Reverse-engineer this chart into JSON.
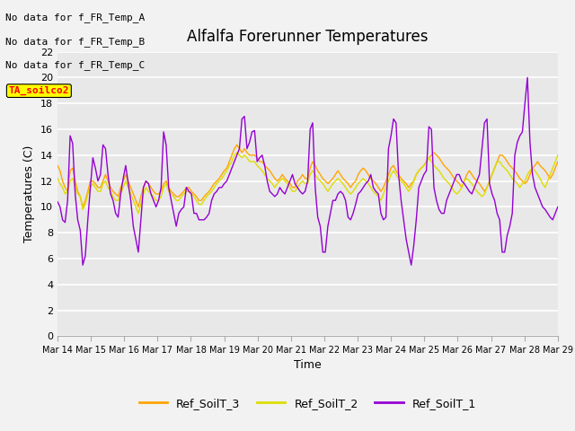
{
  "title": "Alfalfa Forerunner Temperatures",
  "xlabel": "Time",
  "ylabel": "Temperatures (C)",
  "ylim": [
    0,
    22
  ],
  "bg_color": "#e8e8e8",
  "fig_color": "#f2f2f2",
  "annotations": [
    "No data for f_FR_Temp_A",
    "No data for f_FR_Temp_B",
    "No data for f_FR_Temp_C"
  ],
  "box_label": "TA_soilco2",
  "line_colors": {
    "Ref_SoilT_3": "#FFA500",
    "Ref_SoilT_2": "#DDDD00",
    "Ref_SoilT_1": "#9400D3"
  },
  "xtick_labels": [
    "Mar 14",
    "Mar 15",
    "Mar 16",
    "Mar 17",
    "Mar 18",
    "Mar 19",
    "Mar 20",
    "Mar 21",
    "Mar 22",
    "Mar 23",
    "Mar 24",
    "Mar 25",
    "Mar 26",
    "Mar 27",
    "Mar 28",
    "Mar 29"
  ],
  "ytick_values": [
    0,
    2,
    4,
    6,
    8,
    10,
    12,
    14,
    16,
    18,
    20,
    22
  ],
  "ref_soilt_1": [
    10.4,
    10.0,
    9.0,
    8.8,
    10.5,
    15.5,
    14.9,
    11.0,
    9.0,
    8.2,
    5.5,
    6.2,
    9.0,
    11.5,
    13.8,
    13.0,
    12.0,
    12.5,
    14.8,
    14.5,
    12.5,
    11.0,
    10.5,
    9.5,
    9.2,
    11.0,
    12.2,
    13.2,
    11.8,
    10.5,
    8.5,
    7.5,
    6.5,
    9.0,
    11.5,
    12.0,
    11.8,
    11.0,
    10.5,
    10.0,
    10.5,
    11.5,
    15.8,
    14.8,
    11.5,
    10.5,
    9.5,
    8.5,
    9.5,
    9.8,
    10.0,
    11.5,
    11.2,
    11.0,
    9.5,
    9.5,
    9.0,
    9.0,
    9.0,
    9.2,
    9.5,
    10.5,
    11.0,
    11.2,
    11.5,
    11.5,
    11.8,
    12.0,
    12.5,
    13.0,
    13.5,
    14.0,
    14.5,
    16.8,
    17.0,
    14.5,
    15.0,
    15.8,
    15.9,
    13.5,
    13.8,
    14.0,
    13.2,
    12.0,
    11.2,
    11.0,
    10.8,
    11.0,
    11.5,
    11.2,
    11.0,
    11.5,
    12.0,
    12.5,
    11.8,
    11.5,
    11.2,
    11.0,
    11.2,
    12.0,
    16.0,
    16.5,
    11.5,
    9.2,
    8.5,
    6.5,
    6.5,
    8.5,
    9.5,
    10.5,
    10.5,
    11.0,
    11.2,
    11.0,
    10.5,
    9.2,
    9.0,
    9.5,
    10.2,
    11.0,
    11.2,
    11.5,
    11.8,
    12.0,
    12.5,
    11.5,
    11.2,
    11.0,
    9.5,
    9.0,
    9.2,
    14.5,
    15.5,
    16.8,
    16.5,
    12.5,
    10.5,
    9.0,
    7.5,
    6.5,
    5.5,
    7.0,
    9.0,
    11.5,
    12.0,
    12.5,
    12.8,
    16.2,
    16.0,
    11.5,
    10.5,
    9.8,
    9.5,
    9.5,
    10.5,
    11.0,
    11.5,
    12.0,
    12.5,
    12.5,
    12.0,
    11.8,
    11.5,
    11.2,
    11.0,
    11.5,
    12.0,
    12.5,
    14.5,
    16.5,
    16.8,
    11.8,
    11.0,
    10.5,
    9.5,
    9.0,
    6.5,
    6.5,
    7.8,
    8.5,
    9.5,
    14.0,
    15.0,
    15.5,
    15.8,
    18.0,
    20.0,
    15.0,
    12.5,
    11.5,
    11.0,
    10.5,
    10.0,
    9.8,
    9.5,
    9.2,
    9.0,
    9.5,
    10.0
  ],
  "ref_soilt_3": [
    13.2,
    12.8,
    12.0,
    11.5,
    11.2,
    12.8,
    13.0,
    12.0,
    11.2,
    10.8,
    10.0,
    10.5,
    11.2,
    12.0,
    12.0,
    11.8,
    11.5,
    11.5,
    12.0,
    12.5,
    12.0,
    11.5,
    11.2,
    11.0,
    10.8,
    11.5,
    12.0,
    12.5,
    12.0,
    11.5,
    11.0,
    10.5,
    10.0,
    10.8,
    11.5,
    12.0,
    11.8,
    11.5,
    11.2,
    11.0,
    11.0,
    11.2,
    11.8,
    12.0,
    11.5,
    11.2,
    11.0,
    10.8,
    10.8,
    11.0,
    11.2,
    11.5,
    11.5,
    11.2,
    11.0,
    10.8,
    10.5,
    10.5,
    10.8,
    11.0,
    11.2,
    11.5,
    11.8,
    12.0,
    12.2,
    12.5,
    12.8,
    13.0,
    13.5,
    14.0,
    14.5,
    14.8,
    14.5,
    14.2,
    14.5,
    14.2,
    14.0,
    14.0,
    14.0,
    13.8,
    13.5,
    13.5,
    13.2,
    13.0,
    12.8,
    12.5,
    12.2,
    12.0,
    12.2,
    12.5,
    12.2,
    12.0,
    11.8,
    11.5,
    11.5,
    12.0,
    12.2,
    12.5,
    12.2,
    12.2,
    13.0,
    13.5,
    13.2,
    12.8,
    12.5,
    12.2,
    12.0,
    11.8,
    12.0,
    12.2,
    12.5,
    12.8,
    12.5,
    12.2,
    12.0,
    11.8,
    11.5,
    11.8,
    12.0,
    12.5,
    12.8,
    13.0,
    12.8,
    12.5,
    12.2,
    12.0,
    11.8,
    11.5,
    11.2,
    11.5,
    12.0,
    12.5,
    13.0,
    13.2,
    12.8,
    12.5,
    12.2,
    12.0,
    11.8,
    11.5,
    11.8,
    12.0,
    12.5,
    12.8,
    13.0,
    13.2,
    13.5,
    13.8,
    14.0,
    14.2,
    14.0,
    13.8,
    13.5,
    13.2,
    13.0,
    12.8,
    12.5,
    12.2,
    12.0,
    11.8,
    11.5,
    12.0,
    12.5,
    12.8,
    12.5,
    12.2,
    12.0,
    11.8,
    11.5,
    11.2,
    11.5,
    12.0,
    12.5,
    13.0,
    13.5,
    14.0,
    14.0,
    13.8,
    13.5,
    13.2,
    13.0,
    12.8,
    12.5,
    12.2,
    12.0,
    11.8,
    12.0,
    12.5,
    13.0,
    13.2,
    13.5,
    13.2,
    13.0,
    12.8,
    12.5,
    12.2,
    12.5,
    13.0,
    13.5,
    14.0,
    14.5,
    14.8,
    14.5,
    14.2,
    14.0,
    13.5,
    13.2,
    13.0,
    12.8,
    12.5,
    12.2,
    12.0,
    11.8
  ],
  "ref_soilt_2": [
    12.2,
    11.8,
    11.5,
    11.0,
    11.2,
    12.0,
    12.2,
    11.5,
    11.0,
    10.8,
    9.8,
    10.2,
    11.0,
    11.5,
    11.8,
    11.5,
    11.2,
    11.2,
    11.8,
    12.0,
    11.5,
    11.2,
    10.8,
    10.5,
    10.5,
    11.0,
    11.5,
    12.0,
    11.5,
    11.0,
    10.5,
    10.0,
    9.5,
    10.2,
    11.0,
    11.5,
    11.2,
    11.0,
    10.8,
    10.5,
    10.5,
    10.8,
    11.5,
    11.8,
    11.2,
    11.0,
    10.8,
    10.5,
    10.5,
    10.8,
    11.0,
    11.2,
    11.2,
    11.0,
    10.8,
    10.5,
    10.2,
    10.2,
    10.5,
    10.8,
    11.0,
    11.2,
    11.5,
    11.8,
    12.0,
    12.2,
    12.5,
    12.8,
    13.2,
    13.5,
    14.0,
    14.2,
    14.0,
    13.8,
    14.0,
    13.8,
    13.5,
    13.5,
    13.5,
    13.2,
    13.0,
    12.8,
    12.5,
    12.2,
    12.0,
    11.8,
    11.5,
    11.8,
    12.0,
    12.2,
    12.0,
    11.8,
    11.5,
    11.2,
    11.2,
    11.5,
    11.8,
    12.0,
    11.8,
    11.8,
    12.5,
    12.8,
    12.5,
    12.2,
    12.0,
    11.8,
    11.5,
    11.2,
    11.5,
    11.8,
    12.0,
    12.2,
    12.0,
    11.8,
    11.5,
    11.2,
    11.0,
    11.2,
    11.5,
    11.8,
    12.0,
    12.2,
    12.0,
    11.8,
    11.5,
    11.2,
    11.0,
    10.8,
    10.5,
    11.0,
    11.5,
    12.0,
    12.5,
    12.8,
    12.5,
    12.2,
    12.0,
    11.8,
    11.5,
    11.2,
    11.5,
    12.0,
    12.5,
    12.8,
    13.0,
    13.2,
    13.5,
    13.8,
    13.5,
    13.2,
    13.0,
    12.8,
    12.5,
    12.2,
    12.0,
    11.8,
    11.5,
    11.2,
    11.0,
    11.2,
    11.5,
    12.0,
    12.2,
    12.0,
    11.8,
    11.5,
    11.2,
    11.0,
    10.8,
    11.0,
    11.5,
    12.0,
    12.5,
    13.0,
    13.5,
    13.5,
    13.2,
    13.0,
    12.8,
    12.5,
    12.2,
    12.0,
    11.8,
    11.5,
    11.8,
    12.0,
    12.5,
    12.8,
    13.0,
    12.8,
    12.5,
    12.2,
    11.8,
    11.5,
    12.0,
    12.5,
    13.0,
    13.5,
    14.0,
    14.2,
    14.0,
    13.8,
    13.5,
    13.2,
    12.8,
    12.5,
    12.2,
    12.0,
    11.8,
    11.5,
    11.2
  ]
}
